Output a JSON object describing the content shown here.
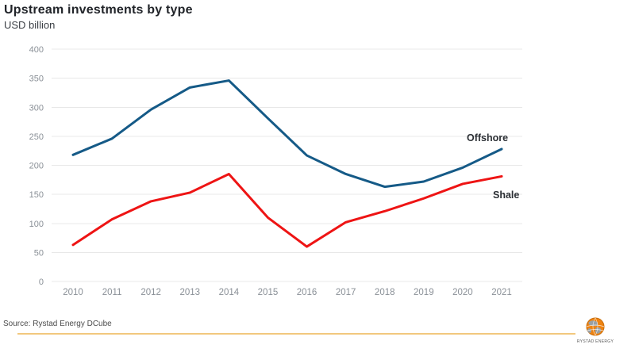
{
  "header": {
    "title": "Upstream investments by type",
    "subtitle": "USD billion"
  },
  "chart_data": {
    "type": "line",
    "categories": [
      "2010",
      "2011",
      "2012",
      "2013",
      "2014",
      "2015",
      "2016",
      "2017",
      "2018",
      "2019",
      "2020",
      "2021"
    ],
    "series": [
      {
        "name": "Offshore",
        "color": "#155a87",
        "values": [
          218,
          246,
          296,
          334,
          346,
          281,
          217,
          185,
          163,
          172,
          196,
          228
        ]
      },
      {
        "name": "Shale",
        "color": "#ee1414",
        "values": [
          63,
          107,
          138,
          153,
          185,
          110,
          60,
          102,
          121,
          143,
          168,
          181
        ]
      }
    ],
    "title": "Upstream investments by type",
    "ylabel": "USD billion",
    "xlabel": "",
    "ylim": [
      0,
      400
    ],
    "ytick_step": 50,
    "grid": "horizontal",
    "legend_position": "labels-at-line-end"
  },
  "colors": {
    "offshore_line": "#155a87",
    "shale_line": "#ee1414",
    "gridline": "#e8e8e8",
    "tick_text": "#8a9097",
    "source_rule": "#f2c87e"
  },
  "footer": {
    "source": "Source: Rystad Energy DCube"
  },
  "logo": {
    "caption": "RYSTAD ENERGY"
  }
}
